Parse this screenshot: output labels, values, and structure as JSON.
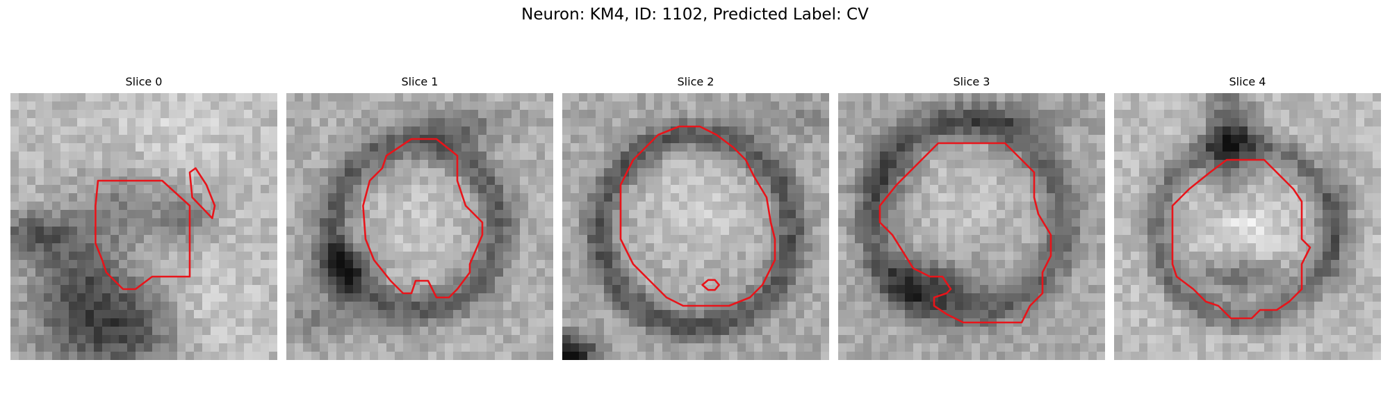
{
  "figure": {
    "title": "Neuron: KM4, ID: 1102, Predicted Label: CV"
  },
  "panels": [
    {
      "title": "Slice 0"
    },
    {
      "title": "Slice 1"
    },
    {
      "title": "Slice 2"
    },
    {
      "title": "Slice 3"
    },
    {
      "title": "Slice 4"
    }
  ],
  "style": {
    "contour_color": "#e8141a",
    "colormap": "grayscale"
  }
}
